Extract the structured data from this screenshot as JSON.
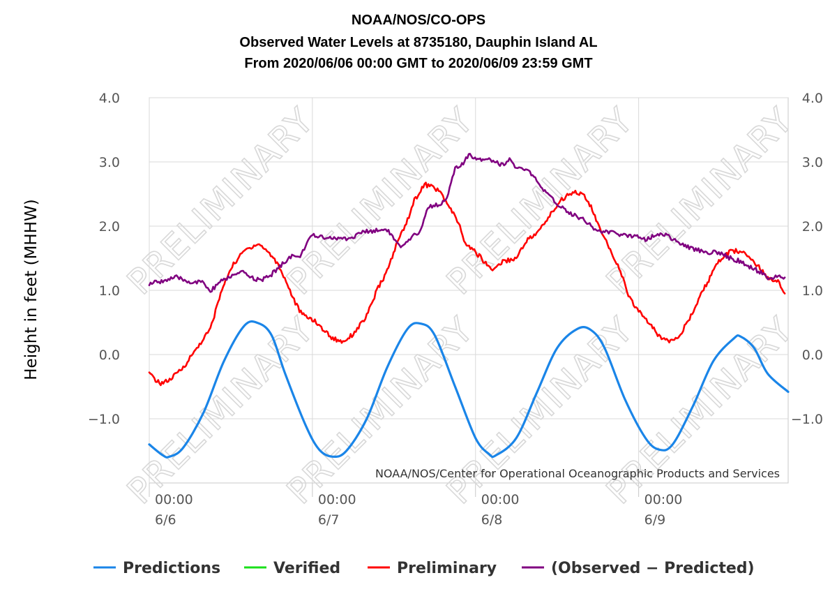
{
  "chart_data": {
    "type": "line",
    "title": [
      "NOAA/NOS/CO-OPS",
      "Observed Water Levels at 8735180, Dauphin Island AL",
      "From 2020/06/06 00:00 GMT to 2020/06/09 23:59 GMT"
    ],
    "ylabel": "Height in feet (MHHW)",
    "credit": "NOAA/NOS/Center for Operational Oceanographic Products and Services",
    "watermark": "PRELIMINARY",
    "ylim": [
      -2.0,
      4.0
    ],
    "xlim_hours": [
      0,
      94
    ],
    "y_ticks": [
      {
        "value": 4.0,
        "label": "4.0"
      },
      {
        "value": 3.0,
        "label": "3.0"
      },
      {
        "value": 2.0,
        "label": "2.0"
      },
      {
        "value": 1.0,
        "label": "1.0"
      },
      {
        "value": 0.0,
        "label": "0.0"
      },
      {
        "value": -1.0,
        "label": "−1.0"
      }
    ],
    "x_ticks": [
      {
        "hour": 0,
        "time": "00:00",
        "date": "6/6"
      },
      {
        "hour": 24,
        "time": "00:00",
        "date": "6/7"
      },
      {
        "hour": 48,
        "time": "00:00",
        "date": "6/8"
      },
      {
        "hour": 72,
        "time": "00:00",
        "date": "6/9"
      }
    ],
    "grid": true,
    "legend_position": "bottom",
    "series": [
      {
        "name": "Predictions",
        "color": "#1a85e8",
        "points": [
          [
            0,
            -1.4
          ],
          [
            2,
            -1.57
          ],
          [
            3,
            -1.59
          ],
          [
            5,
            -1.45
          ],
          [
            8,
            -0.9
          ],
          [
            11,
            -0.1
          ],
          [
            14,
            0.45
          ],
          [
            16,
            0.49
          ],
          [
            18,
            0.3
          ],
          [
            20,
            -0.3
          ],
          [
            23,
            -1.1
          ],
          [
            25,
            -1.48
          ],
          [
            27,
            -1.59
          ],
          [
            29,
            -1.5
          ],
          [
            32,
            -1.0
          ],
          [
            35,
            -0.2
          ],
          [
            38,
            0.4
          ],
          [
            40,
            0.48
          ],
          [
            42,
            0.3
          ],
          [
            45,
            -0.5
          ],
          [
            48,
            -1.3
          ],
          [
            50,
            -1.55
          ],
          [
            51,
            -1.57
          ],
          [
            54,
            -1.3
          ],
          [
            57,
            -0.6
          ],
          [
            60,
            0.1
          ],
          [
            63,
            0.4
          ],
          [
            65,
            0.38
          ],
          [
            67,
            0.1
          ],
          [
            70,
            -0.7
          ],
          [
            73,
            -1.3
          ],
          [
            75,
            -1.48
          ],
          [
            77,
            -1.4
          ],
          [
            80,
            -0.8
          ],
          [
            83,
            -0.1
          ],
          [
            86,
            0.25
          ],
          [
            87,
            0.28
          ],
          [
            89,
            0.1
          ],
          [
            91,
            -0.3
          ],
          [
            94,
            -0.58
          ]
        ]
      },
      {
        "name": "Verified",
        "color": "#1adf1a",
        "points": []
      },
      {
        "name": "Preliminary",
        "color": "#ff0000",
        "points": [
          [
            0,
            -0.3
          ],
          [
            1.5,
            -0.45
          ],
          [
            3,
            -0.4
          ],
          [
            5,
            -0.2
          ],
          [
            7,
            0.1
          ],
          [
            9,
            0.4
          ],
          [
            10.5,
            0.95
          ],
          [
            12,
            1.35
          ],
          [
            14,
            1.62
          ],
          [
            16,
            1.73
          ],
          [
            17.5,
            1.6
          ],
          [
            19,
            1.4
          ],
          [
            20.5,
            1.05
          ],
          [
            21.5,
            0.8
          ],
          [
            22.5,
            0.62
          ],
          [
            24,
            0.55
          ],
          [
            25.5,
            0.4
          ],
          [
            27,
            0.25
          ],
          [
            28.5,
            0.2
          ],
          [
            30,
            0.32
          ],
          [
            32,
            0.6
          ],
          [
            33.5,
            1.0
          ],
          [
            35,
            1.3
          ],
          [
            36.5,
            1.75
          ],
          [
            38,
            2.1
          ],
          [
            39,
            2.4
          ],
          [
            40.5,
            2.65
          ],
          [
            42,
            2.6
          ],
          [
            43,
            2.5
          ],
          [
            44,
            2.32
          ],
          [
            45.5,
            2.05
          ],
          [
            46.5,
            1.72
          ],
          [
            48,
            1.6
          ],
          [
            49.5,
            1.42
          ],
          [
            50.5,
            1.32
          ],
          [
            52,
            1.45
          ],
          [
            54,
            1.5
          ],
          [
            55.5,
            1.78
          ],
          [
            57,
            1.88
          ],
          [
            58.5,
            2.1
          ],
          [
            60.5,
            2.4
          ],
          [
            62.5,
            2.55
          ],
          [
            64,
            2.47
          ],
          [
            65,
            2.3
          ],
          [
            66.5,
            1.9
          ],
          [
            68,
            1.6
          ],
          [
            69.5,
            1.25
          ],
          [
            70.5,
            0.9
          ],
          [
            72,
            0.68
          ],
          [
            73.5,
            0.5
          ],
          [
            75,
            0.28
          ],
          [
            76.5,
            0.22
          ],
          [
            78,
            0.3
          ],
          [
            79.5,
            0.55
          ],
          [
            81,
            0.9
          ],
          [
            82.5,
            1.2
          ],
          [
            84,
            1.48
          ],
          [
            85.5,
            1.6
          ],
          [
            86.5,
            1.62
          ],
          [
            88,
            1.55
          ],
          [
            89.5,
            1.38
          ],
          [
            91,
            1.2
          ],
          [
            92.5,
            1.15
          ],
          [
            93.5,
            0.95
          ]
        ]
      },
      {
        "name": "(Observed − Predicted)",
        "color": "#800080",
        "points": [
          [
            0,
            1.1
          ],
          [
            2,
            1.15
          ],
          [
            4,
            1.2
          ],
          [
            6,
            1.13
          ],
          [
            8,
            1.12
          ],
          [
            9,
            0.97
          ],
          [
            10,
            1.1
          ],
          [
            12,
            1.22
          ],
          [
            14,
            1.28
          ],
          [
            15,
            1.2
          ],
          [
            16.5,
            1.15
          ],
          [
            18,
            1.25
          ],
          [
            19,
            1.35
          ],
          [
            20,
            1.45
          ],
          [
            21,
            1.55
          ],
          [
            22,
            1.5
          ],
          [
            23,
            1.7
          ],
          [
            24,
            1.85
          ],
          [
            26,
            1.83
          ],
          [
            28,
            1.8
          ],
          [
            30,
            1.82
          ],
          [
            31,
            1.9
          ],
          [
            33,
            1.93
          ],
          [
            35,
            1.95
          ],
          [
            36,
            1.8
          ],
          [
            37,
            1.65
          ],
          [
            38,
            1.75
          ],
          [
            40,
            1.95
          ],
          [
            41,
            2.3
          ],
          [
            43,
            2.35
          ],
          [
            44,
            2.5
          ],
          [
            45,
            2.9
          ],
          [
            46,
            2.95
          ],
          [
            47,
            3.1
          ],
          [
            48.5,
            3.05
          ],
          [
            50,
            3.05
          ],
          [
            52,
            2.95
          ],
          [
            53,
            3.05
          ],
          [
            54,
            2.9
          ],
          [
            56,
            2.85
          ],
          [
            57,
            2.7
          ],
          [
            58,
            2.55
          ],
          [
            60,
            2.35
          ],
          [
            62,
            2.2
          ],
          [
            64,
            2.1
          ],
          [
            66,
            1.92
          ],
          [
            68,
            1.9
          ],
          [
            70,
            1.85
          ],
          [
            72,
            1.85
          ],
          [
            73,
            1.8
          ],
          [
            75,
            1.87
          ],
          [
            76,
            1.88
          ],
          [
            77,
            1.8
          ],
          [
            78.5,
            1.7
          ],
          [
            80,
            1.65
          ],
          [
            82,
            1.6
          ],
          [
            84,
            1.58
          ],
          [
            85.5,
            1.5
          ],
          [
            87,
            1.45
          ],
          [
            88.5,
            1.35
          ],
          [
            90,
            1.28
          ],
          [
            91,
            1.2
          ],
          [
            93.5,
            1.2
          ]
        ]
      }
    ]
  }
}
